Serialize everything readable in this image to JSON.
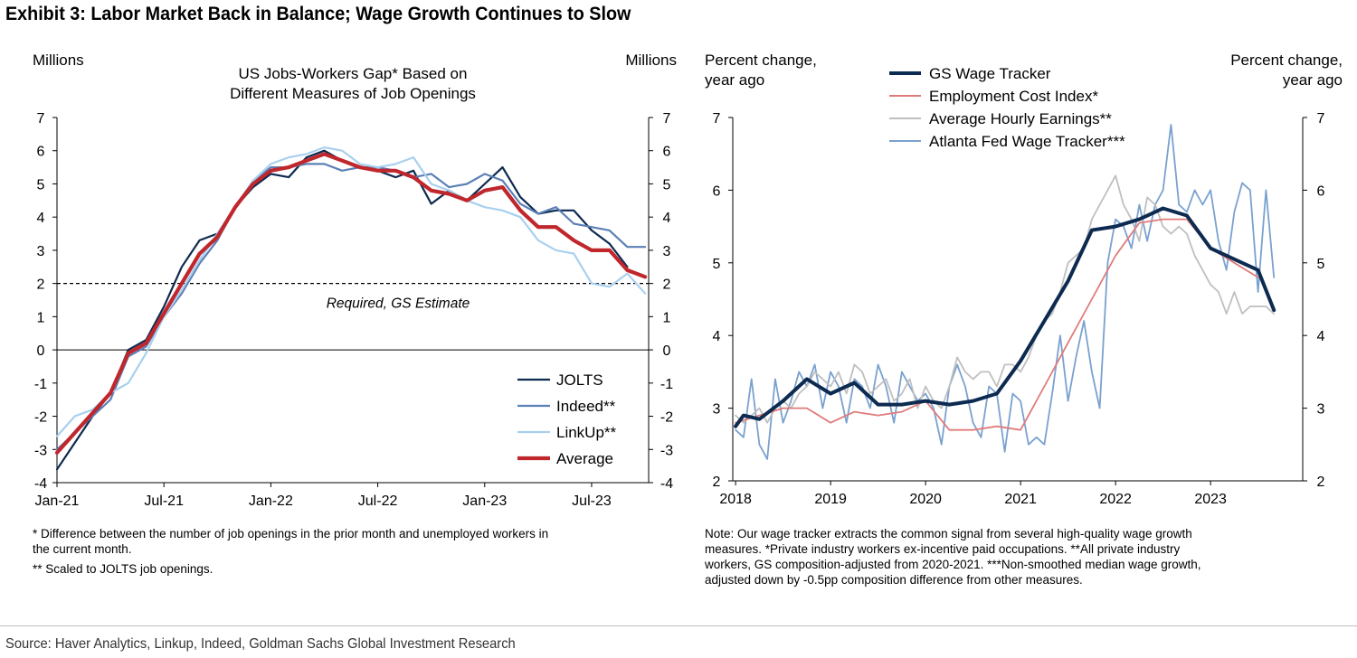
{
  "exhibit_title": "Exhibit 3: Labor Market Back in Balance; Wage Growth Continues to Slow",
  "left_notes": [
    "* Difference between the number of job openings in the prior month and unemployed workers in",
    "the current month.",
    "** Scaled to JOLTS job openings."
  ],
  "right_notes": [
    "Note: Our wage tracker extracts the common signal from several high-quality wage growth",
    "measures. *Private industry workers ex-incentive paid occupations. **All private industry",
    "workers, GS composition-adjusted from 2020-2021. ***Non-smoothed median wage growth,",
    "adjusted down by -0.5pp composition difference from other measures."
  ],
  "source": "Source: Haver Analytics, Linkup, Indeed, Goldman Sachs Global Investment Research",
  "chart_data": [
    {
      "type": "line",
      "title": [
        "US Jobs-Workers Gap* Based on",
        "Different Measures of Job Openings"
      ],
      "yunit_left": "Millions",
      "yunit_right": "Millions",
      "ylim": [
        -4,
        7
      ],
      "yticks": [
        -4,
        -3,
        -2,
        -1,
        0,
        1,
        2,
        3,
        4,
        5,
        6,
        7
      ],
      "xlim": [
        0,
        33.2
      ],
      "xticks": [
        {
          "x": 0,
          "label": "Jan-21"
        },
        {
          "x": 6,
          "label": "Jul-21"
        },
        {
          "x": 12,
          "label": "Jan-22"
        },
        {
          "x": 18,
          "label": "Jul-22"
        },
        {
          "x": 24,
          "label": "Jan-23"
        },
        {
          "x": 30,
          "label": "Jul-23"
        }
      ],
      "annotations": [
        {
          "type": "hline",
          "y": 2,
          "style": "dashed",
          "label": "Required, GS Estimate"
        }
      ],
      "legend_position": "bottom-right",
      "series": [
        {
          "name": "JOLTS",
          "color": "#0d2a50",
          "width": 2.2,
          "x": [
            0,
            1,
            2,
            3,
            4,
            5,
            6,
            7,
            8,
            9,
            10,
            11,
            12,
            13,
            14,
            15,
            16,
            17,
            18,
            19,
            20,
            21,
            22,
            23,
            24,
            25,
            26,
            27,
            28,
            29,
            30,
            31,
            32
          ],
          "y": [
            -3.6,
            -2.8,
            -2.0,
            -1.3,
            0.0,
            0.3,
            1.3,
            2.5,
            3.3,
            3.5,
            4.3,
            4.9,
            5.3,
            5.2,
            5.8,
            6.0,
            5.7,
            5.5,
            5.4,
            5.2,
            5.4,
            4.4,
            4.8,
            4.5,
            5.0,
            5.5,
            4.6,
            4.1,
            4.2,
            4.2,
            3.6,
            3.2,
            2.5
          ]
        },
        {
          "name": "Indeed**",
          "color": "#5b80b5",
          "width": 2.2,
          "x": [
            0,
            1,
            2,
            3,
            4,
            5,
            6,
            7,
            8,
            9,
            10,
            11,
            12,
            13,
            14,
            15,
            16,
            17,
            18,
            19,
            20,
            21,
            22,
            23,
            24,
            25,
            26,
            27,
            28,
            29,
            30,
            31,
            32,
            33
          ],
          "y": [
            -3.0,
            -2.5,
            -2.0,
            -1.5,
            -0.2,
            0.1,
            1.0,
            1.7,
            2.6,
            3.3,
            4.3,
            5.1,
            5.5,
            5.5,
            5.6,
            5.6,
            5.4,
            5.5,
            5.5,
            5.4,
            5.2,
            5.3,
            4.9,
            5.0,
            5.3,
            5.1,
            4.4,
            4.1,
            4.3,
            3.8,
            3.7,
            3.6,
            3.1,
            3.1
          ]
        },
        {
          "name": "LinkUp**",
          "color": "#a8d0ef",
          "width": 2.2,
          "x": [
            0,
            1,
            2,
            3,
            4,
            5,
            6,
            7,
            8,
            9,
            10,
            11,
            12,
            13,
            14,
            15,
            16,
            17,
            18,
            19,
            20,
            21,
            22,
            23,
            24,
            25,
            26,
            27,
            28,
            29,
            30,
            31,
            32,
            33
          ],
          "y": [
            -2.6,
            -2.0,
            -1.8,
            -1.3,
            -1.0,
            -0.1,
            1.0,
            1.8,
            2.7,
            3.5,
            4.3,
            5.1,
            5.6,
            5.8,
            5.9,
            6.1,
            6.0,
            5.6,
            5.5,
            5.6,
            5.8,
            5.0,
            4.8,
            4.5,
            4.3,
            4.2,
            4.0,
            3.3,
            3.0,
            2.9,
            2.0,
            1.9,
            2.3,
            1.7
          ]
        },
        {
          "name": "Average",
          "color": "#c0272d",
          "width": 4.2,
          "x": [
            0,
            1,
            2,
            3,
            4,
            5,
            6,
            7,
            8,
            9,
            10,
            11,
            12,
            13,
            14,
            15,
            16,
            17,
            18,
            19,
            20,
            21,
            22,
            23,
            24,
            25,
            26,
            27,
            28,
            29,
            30,
            31,
            32,
            33
          ],
          "y": [
            -3.1,
            -2.5,
            -1.9,
            -1.3,
            -0.1,
            0.2,
            1.1,
            2.0,
            2.9,
            3.4,
            4.3,
            5.0,
            5.4,
            5.5,
            5.7,
            5.9,
            5.7,
            5.5,
            5.4,
            5.4,
            5.2,
            4.8,
            4.7,
            4.5,
            4.8,
            4.9,
            4.2,
            3.7,
            3.7,
            3.3,
            3.0,
            3.0,
            2.4,
            2.2
          ]
        }
      ]
    },
    {
      "type": "line",
      "yunit_left": [
        "Percent change,",
        "year ago"
      ],
      "yunit_right": [
        "Percent change,",
        "year ago"
      ],
      "ylim": [
        2,
        7
      ],
      "yticks": [
        2,
        3,
        4,
        5,
        6,
        7
      ],
      "xlim": [
        2017.97,
        2023.97
      ],
      "xticks": [
        {
          "x": 2018,
          "label": "2018"
        },
        {
          "x": 2019,
          "label": "2019"
        },
        {
          "x": 2020,
          "label": "2020"
        },
        {
          "x": 2021,
          "label": "2021"
        },
        {
          "x": 2022,
          "label": "2022"
        },
        {
          "x": 2023,
          "label": "2023"
        }
      ],
      "legend_position": "top-center",
      "series": [
        {
          "name": "Atlanta Fed Wage Tracker***",
          "color": "#7aa1cf",
          "width": 1.8,
          "x": [
            2018.0,
            2018.083,
            2018.167,
            2018.25,
            2018.333,
            2018.417,
            2018.5,
            2018.583,
            2018.667,
            2018.75,
            2018.833,
            2018.917,
            2019.0,
            2019.083,
            2019.167,
            2019.25,
            2019.333,
            2019.417,
            2019.5,
            2019.583,
            2019.667,
            2019.75,
            2019.833,
            2019.917,
            2020.0,
            2020.083,
            2020.167,
            2020.25,
            2020.333,
            2020.417,
            2020.5,
            2020.583,
            2020.667,
            2020.75,
            2020.833,
            2020.917,
            2021.0,
            2021.083,
            2021.167,
            2021.25,
            2021.333,
            2021.417,
            2021.5,
            2021.583,
            2021.667,
            2021.75,
            2021.833,
            2021.917,
            2022.0,
            2022.083,
            2022.167,
            2022.25,
            2022.333,
            2022.417,
            2022.5,
            2022.583,
            2022.667,
            2022.75,
            2022.833,
            2022.917,
            2023.0,
            2023.083,
            2023.167,
            2023.25,
            2023.333,
            2023.417,
            2023.5,
            2023.583,
            2023.667
          ],
          "y": [
            2.7,
            2.6,
            3.4,
            2.5,
            2.3,
            3.4,
            2.8,
            3.1,
            3.5,
            3.3,
            3.6,
            3.0,
            3.5,
            3.3,
            2.8,
            3.4,
            3.3,
            3.0,
            3.6,
            3.3,
            2.8,
            3.5,
            3.3,
            3.1,
            3.2,
            3.0,
            2.5,
            3.3,
            3.6,
            3.3,
            2.8,
            2.6,
            3.3,
            3.2,
            2.4,
            3.2,
            3.1,
            2.5,
            2.6,
            2.5,
            3.2,
            4.0,
            3.1,
            3.7,
            4.2,
            3.5,
            3.0,
            5.0,
            5.6,
            5.5,
            5.2,
            5.8,
            5.3,
            5.8,
            6.0,
            6.9,
            5.8,
            5.7,
            6.0,
            5.8,
            6.0,
            5.3,
            4.9,
            5.7,
            6.1,
            6.0,
            4.6,
            6.0,
            4.8
          ]
        },
        {
          "name": "Average Hourly Earnings**",
          "color": "#bfbfbf",
          "width": 1.8,
          "x": [
            2018.0,
            2018.083,
            2018.167,
            2018.25,
            2018.333,
            2018.417,
            2018.5,
            2018.583,
            2018.667,
            2018.75,
            2018.833,
            2018.917,
            2019.0,
            2019.083,
            2019.167,
            2019.25,
            2019.333,
            2019.417,
            2019.5,
            2019.583,
            2019.667,
            2019.75,
            2019.833,
            2019.917,
            2020.0,
            2020.083,
            2020.167,
            2020.25,
            2020.333,
            2020.417,
            2020.5,
            2020.583,
            2020.667,
            2020.75,
            2020.833,
            2020.917,
            2021.0,
            2021.083,
            2021.167,
            2021.25,
            2021.333,
            2021.417,
            2021.5,
            2021.583,
            2021.667,
            2021.75,
            2021.833,
            2021.917,
            2022.0,
            2022.083,
            2022.167,
            2022.25,
            2022.333,
            2022.417,
            2022.5,
            2022.583,
            2022.667,
            2022.75,
            2022.833,
            2022.917,
            2023.0,
            2023.083,
            2023.167,
            2023.25,
            2023.333,
            2023.417,
            2023.5,
            2023.583,
            2023.667
          ],
          "y": [
            2.9,
            2.8,
            2.9,
            3.0,
            2.8,
            3.0,
            3.1,
            3.0,
            3.2,
            3.3,
            3.5,
            3.4,
            3.3,
            3.5,
            3.2,
            3.6,
            3.5,
            3.2,
            3.3,
            3.4,
            3.1,
            3.2,
            3.4,
            3.0,
            3.3,
            3.1,
            3.0,
            3.3,
            3.7,
            3.5,
            3.4,
            3.5,
            3.5,
            3.3,
            3.6,
            3.6,
            3.5,
            3.7,
            4.0,
            4.2,
            4.3,
            4.6,
            5.0,
            5.1,
            5.2,
            5.6,
            5.8,
            6.0,
            6.2,
            5.8,
            5.6,
            5.3,
            5.9,
            5.8,
            5.5,
            5.4,
            5.5,
            5.4,
            5.1,
            4.9,
            4.7,
            4.6,
            4.3,
            4.6,
            4.3,
            4.4,
            4.4,
            4.4,
            4.3
          ]
        },
        {
          "name": "Employment Cost Index*",
          "color": "#e07b7b",
          "width": 1.8,
          "x": [
            2018.0,
            2018.25,
            2018.5,
            2018.75,
            2019.0,
            2019.25,
            2019.5,
            2019.75,
            2020.0,
            2020.25,
            2020.5,
            2020.75,
            2021.0,
            2021.25,
            2021.5,
            2021.75,
            2022.0,
            2022.25,
            2022.5,
            2022.75,
            2023.0,
            2023.25,
            2023.5
          ],
          "y": [
            2.8,
            2.9,
            3.0,
            3.0,
            2.8,
            2.95,
            2.9,
            2.95,
            3.1,
            2.7,
            2.7,
            2.75,
            2.7,
            3.3,
            3.9,
            4.5,
            5.1,
            5.55,
            5.6,
            5.6,
            5.2,
            5.0,
            4.8
          ]
        },
        {
          "name": "GS Wage Tracker",
          "color": "#0d2a50",
          "width": 4.0,
          "x": [
            2018.0,
            2018.083,
            2018.25,
            2018.5,
            2018.75,
            2019.0,
            2019.25,
            2019.5,
            2019.75,
            2020.0,
            2020.25,
            2020.5,
            2020.75,
            2021.0,
            2021.25,
            2021.5,
            2021.75,
            2022.0,
            2022.25,
            2022.5,
            2022.75,
            2023.0,
            2023.25,
            2023.5,
            2023.667
          ],
          "y": [
            2.75,
            2.9,
            2.85,
            3.1,
            3.4,
            3.2,
            3.35,
            3.05,
            3.05,
            3.1,
            3.05,
            3.1,
            3.2,
            3.65,
            4.2,
            4.75,
            5.45,
            5.5,
            5.6,
            5.75,
            5.65,
            5.2,
            5.05,
            4.9,
            4.35
          ]
        }
      ]
    }
  ]
}
